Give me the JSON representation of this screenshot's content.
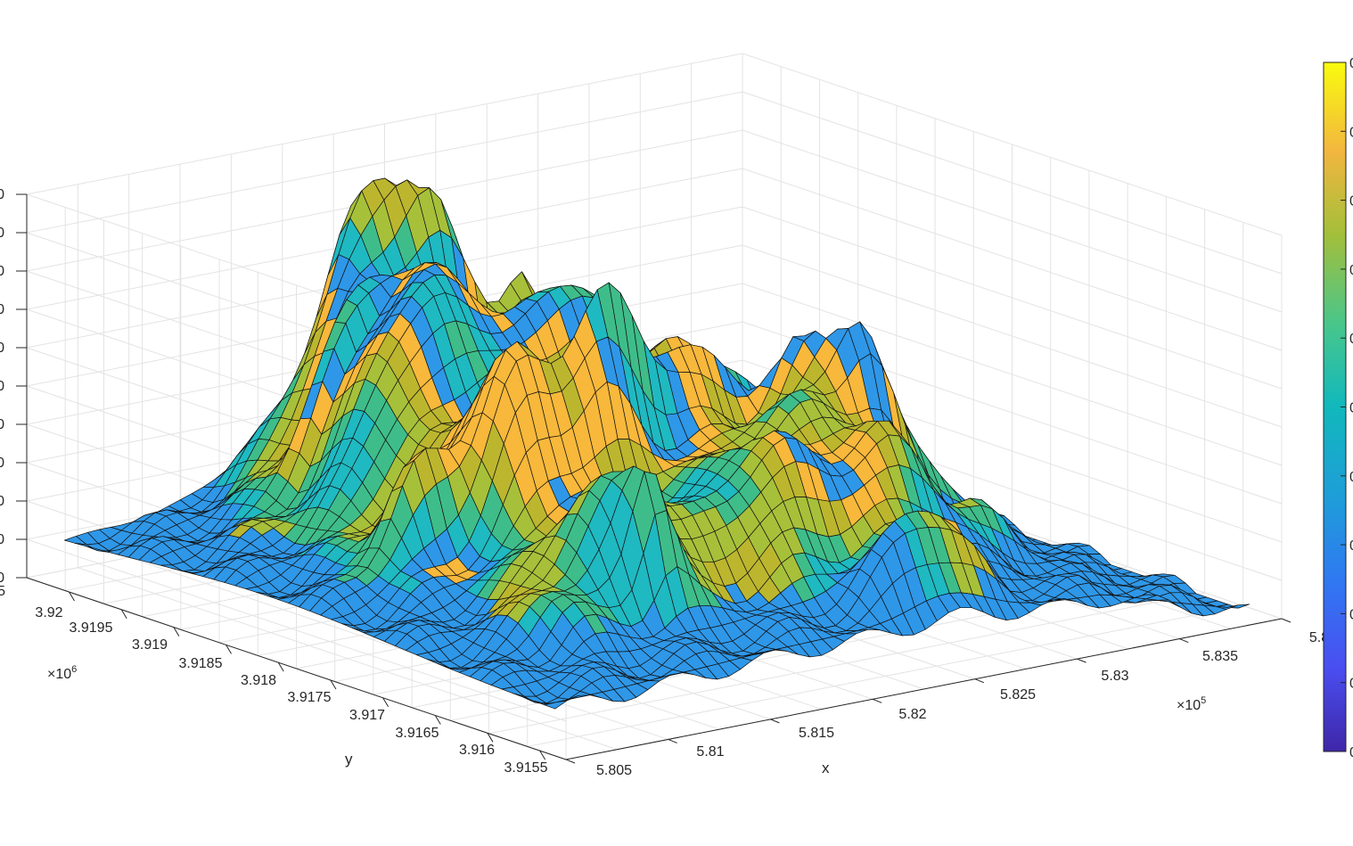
{
  "chart_data": {
    "type": "surface",
    "title": "",
    "xlabel": "x",
    "ylabel": "y",
    "zlabel": "",
    "x_range": [
      580500,
      584000
    ],
    "y_range": [
      3915500,
      3920500
    ],
    "x_ticks": [
      "5.805",
      "5.81",
      "5.815",
      "5.82",
      "5.825",
      "5.83",
      "5.835",
      "5.8"
    ],
    "y_ticks": [
      "3.92",
      "3.9195",
      "3.919",
      "3.9185",
      "3.918",
      "3.9175",
      "3.917",
      "3.9165",
      "3.916",
      "3.9155"
    ],
    "x_exponent": {
      "base": "×10",
      "power": "5"
    },
    "y_exponent": {
      "base": "×10",
      "power": "6"
    },
    "z_tick_labels": [
      "0",
      "0",
      "0",
      "0",
      "0",
      "0",
      "0",
      "0",
      "0",
      "0",
      "0"
    ],
    "z_corner_label": "5",
    "colorbar_tick_labels": [
      "0",
      "0",
      "0",
      "0",
      "0",
      "0",
      "0",
      "0",
      "0",
      "0",
      "0"
    ],
    "colormap": "parula",
    "colors": {
      "low": "#3e26a8",
      "blue": "#2f97e8",
      "teal": "#1fb9c2",
      "green": "#3ebd8a",
      "olive": "#a7c03a",
      "mustard": "#bcb62e",
      "orange": "#f7b83b",
      "high": "#f9fb0e"
    },
    "grid": true,
    "colorbar": "right"
  }
}
